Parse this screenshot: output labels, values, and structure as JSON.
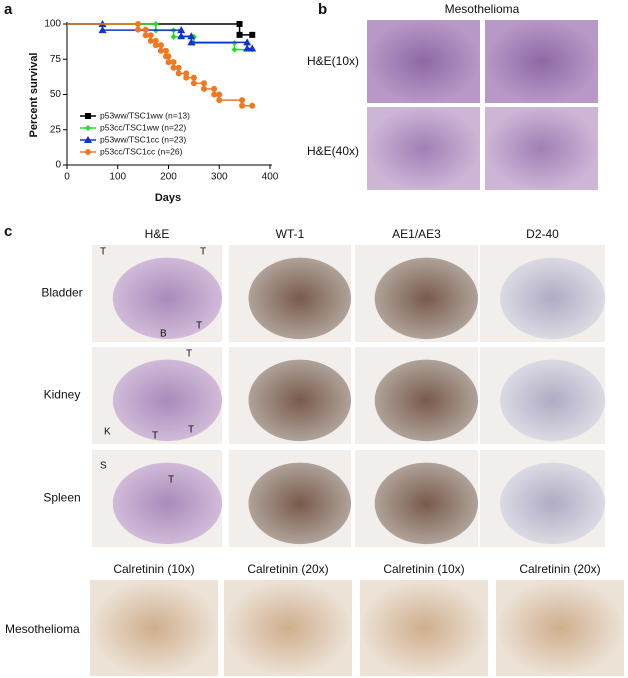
{
  "chart_data": {
    "type": "line",
    "step": true,
    "xlabel": "Days",
    "ylabel": "Percent survival",
    "xlim": [
      0,
      400
    ],
    "ylim": [
      0,
      100
    ],
    "xticks": [
      0,
      100,
      200,
      300,
      400
    ],
    "yticks": [
      0,
      25,
      50,
      75,
      100
    ],
    "series": [
      {
        "name": "p53ww/TSC1ww (n=13)",
        "color": "#000000",
        "marker": "square",
        "x": [
          0,
          340,
          340,
          365
        ],
        "values": [
          100,
          100,
          92.3,
          92.3
        ]
      },
      {
        "name": "p53cc/TSC1ww (n=22)",
        "color": "#22dd22",
        "marker": "diamond",
        "x": [
          0,
          175,
          175,
          210,
          210,
          250,
          250,
          330,
          330,
          365
        ],
        "values": [
          100,
          100,
          95.5,
          95.5,
          90.9,
          90.9,
          86.4,
          86.4,
          81.8,
          81.8
        ]
      },
      {
        "name": "p53ww/TSC1cc (n=23)",
        "color": "#1133cc",
        "marker": "triangle",
        "x": [
          0,
          70,
          70,
          225,
          225,
          245,
          245,
          355,
          355,
          365
        ],
        "values": [
          100,
          100,
          95.7,
          95.7,
          91.3,
          91.3,
          87,
          87,
          82.6,
          82.6
        ]
      },
      {
        "name": "p53cc/TSC1cc (n=26)",
        "color": "#f07820",
        "marker": "circle",
        "x": [
          0,
          140,
          140,
          155,
          155,
          165,
          165,
          175,
          175,
          185,
          185,
          195,
          195,
          200,
          200,
          210,
          210,
          220,
          220,
          235,
          235,
          250,
          250,
          270,
          270,
          290,
          290,
          300,
          300,
          345,
          345,
          365
        ],
        "values": [
          100,
          100,
          96,
          96,
          92,
          92,
          88,
          88,
          85,
          85,
          81,
          81,
          77,
          77,
          73,
          73,
          69,
          69,
          65,
          65,
          62,
          62,
          58,
          58,
          54,
          54,
          50,
          50,
          46,
          46,
          42,
          42
        ]
      }
    ]
  },
  "panel_labels": [
    "a",
    "b",
    "c"
  ],
  "panel_b": {
    "title": "Mesothelioma",
    "rows": [
      "H&E(10x)",
      "H&E(40x)"
    ]
  },
  "panel_c": {
    "columns": [
      "H&E",
      "WT-1",
      "AE1/AE3",
      "D2-40"
    ],
    "rows": [
      "Bladder",
      "Kidney",
      "Spleen"
    ],
    "annotations": {
      "bladder": [
        "T",
        "T",
        "B",
        "T"
      ],
      "kidney": [
        "T",
        "K",
        "T",
        "T"
      ],
      "spleen": [
        "S",
        "T"
      ]
    },
    "bottom_columns": [
      "Calretinin (10x)",
      "Calretinin (20x)",
      "Calretinin (10x)",
      "Calretinin (20x)"
    ],
    "bottom_row": "Mesothelioma"
  }
}
